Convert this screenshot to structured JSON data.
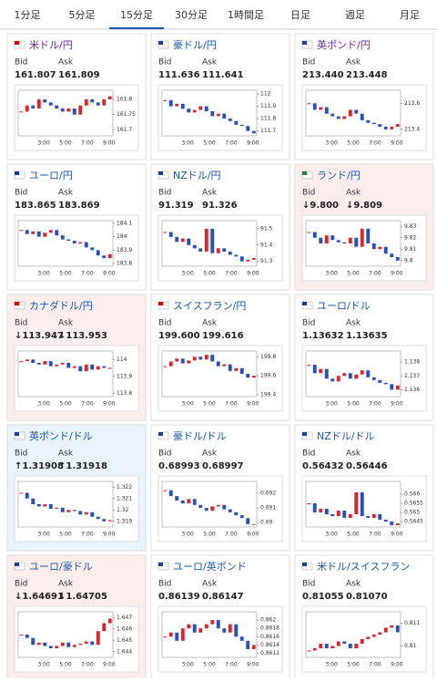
{
  "tabs": [
    "1分足",
    "5分足",
    "15分足",
    "30分足",
    "1時間足",
    "日足",
    "週足",
    "月足"
  ],
  "active_tab": 2,
  "bid_label": "Bid",
  "ask_label": "Ask",
  "time_ticks": [
    "3:00",
    "5:00",
    "7:00",
    "9:00"
  ],
  "panels": [
    {
      "title": "米ドル/円",
      "bid": "161.807",
      "ask": "161.809",
      "ylim": [
        161.68,
        161.83
      ],
      "yticks": [
        161.8,
        161.75,
        161.7
      ],
      "values": [
        161.76,
        161.78,
        161.77,
        161.8,
        161.79,
        161.78,
        161.77,
        161.76,
        161.77,
        161.75,
        161.78,
        161.8,
        161.79,
        161.78,
        161.8,
        161.81
      ]
    },
    {
      "title": "豪ドル/円",
      "bid": "111.636",
      "ask": "111.641",
      "ylim": [
        111.66,
        112.03
      ],
      "yticks": [
        112,
        111.9,
        111.8,
        111.7
      ],
      "values": [
        111.95,
        111.9,
        111.92,
        111.88,
        111.85,
        111.87,
        111.9,
        111.86,
        111.82,
        111.84,
        111.8,
        111.78,
        111.75,
        111.74,
        111.7,
        111.68
      ]
    },
    {
      "title": "英ポンド/円",
      "bid": "213.440",
      "ask": "213.448",
      "ylim": [
        213.35,
        213.7
      ],
      "yticks": [
        213.6,
        213.4
      ],
      "values": [
        213.6,
        213.55,
        213.57,
        213.52,
        213.5,
        213.48,
        213.5,
        213.55,
        213.52,
        213.47,
        213.45,
        213.44,
        213.42,
        213.4,
        213.42,
        213.44
      ]
    },
    {
      "title": "ユーロ/円",
      "bid": "183.865",
      "ask": "183.869",
      "ylim": [
        183.78,
        184.12
      ],
      "yticks": [
        184.1,
        184,
        183.9,
        183.8
      ],
      "values": [
        184.05,
        184.02,
        184.04,
        184.0,
        184.03,
        184.05,
        184.01,
        183.98,
        183.97,
        183.95,
        183.96,
        183.92,
        183.9,
        183.86,
        183.84,
        183.87
      ]
    },
    {
      "title": "NZドル/円",
      "bid": "91.319",
      "ask": "91.326",
      "ylim": [
        91.27,
        91.55
      ],
      "yticks": [
        91.5,
        91.4,
        91.3
      ],
      "values": [
        91.48,
        91.45,
        91.42,
        91.44,
        91.4,
        91.38,
        91.36,
        91.5,
        91.35,
        91.38,
        91.36,
        91.34,
        91.33,
        91.3,
        91.31,
        91.32
      ]
    },
    {
      "title": "ランド/円",
      "bid": "↓9.800",
      "ask": "↓9.809",
      "background": "#fdeeee",
      "ylim": [
        9.795,
        9.835
      ],
      "yticks": [
        9.83,
        9.82,
        9.81,
        9.8
      ],
      "values": [
        9.825,
        9.82,
        9.815,
        9.822,
        9.818,
        9.816,
        9.815,
        9.82,
        9.812,
        9.828,
        9.815,
        9.81,
        9.812,
        9.806,
        9.803,
        9.8
      ]
    },
    {
      "title": "カナダドル/円",
      "bid": "↓113.947",
      "ask": "↓113.953",
      "background": "#fdeeee",
      "ylim": [
        113.78,
        114.05
      ],
      "yticks": [
        114,
        113.9,
        113.8
      ],
      "values": [
        113.99,
        114.0,
        113.98,
        113.97,
        113.99,
        113.96,
        113.97,
        113.98,
        113.95,
        113.96,
        113.93,
        113.97,
        113.94,
        113.96,
        113.95,
        113.95
      ]
    },
    {
      "title": "スイスフラン/円",
      "bid": "199.600",
      "ask": "199.616",
      "ylim": [
        199.38,
        199.86
      ],
      "yticks": [
        199.8,
        199.6,
        199.4
      ],
      "values": [
        199.7,
        199.75,
        199.78,
        199.73,
        199.76,
        199.8,
        199.77,
        199.82,
        199.75,
        199.7,
        199.72,
        199.65,
        199.68,
        199.62,
        199.58,
        199.6
      ]
    },
    {
      "title": "ユーロ/ドル",
      "bid": "1.13632",
      "ask": "1.13635",
      "ylim": [
        1.1355,
        1.1388
      ],
      "yticks": [
        1.138,
        1.137,
        1.136
      ],
      "values": [
        1.1378,
        1.1372,
        1.1375,
        1.1368,
        1.1366,
        1.137,
        1.1372,
        1.1368,
        1.1371,
        1.1374,
        1.1369,
        1.1367,
        1.1365,
        1.1364,
        1.136,
        1.1363
      ]
    },
    {
      "title": "英ポンド/ドル",
      "bid": "↑1.31908",
      "ask": "↑1.31918",
      "background": "#eaf4fc",
      "ylim": [
        1.3185,
        1.3225
      ],
      "yticks": [
        1.322,
        1.321,
        1.32,
        1.319
      ],
      "values": [
        1.3215,
        1.321,
        1.3205,
        1.3203,
        1.3205,
        1.3201,
        1.3202,
        1.3198,
        1.32,
        1.3199,
        1.3196,
        1.3198,
        1.3194,
        1.3192,
        1.319,
        1.3191
      ]
    },
    {
      "title": "豪ドル/ドル",
      "bid": "0.68993",
      "ask": "0.68997",
      "ylim": [
        0.6897,
        0.6928
      ],
      "yticks": [
        0.692,
        0.691,
        0.69
      ],
      "values": [
        0.6922,
        0.6918,
        0.6915,
        0.6913,
        0.6916,
        0.6912,
        0.691,
        0.6908,
        0.6911,
        0.6912,
        0.6909,
        0.6907,
        0.6905,
        0.6903,
        0.6899,
        0.6899
      ]
    },
    {
      "title": "NZドル/ドル",
      "bid": "0.56432",
      "ask": "0.56446",
      "ylim": [
        0.5642,
        0.5667
      ],
      "yticks": [
        0.566,
        0.5655,
        0.565,
        0.5645
      ],
      "values": [
        0.5655,
        0.565,
        0.5652,
        0.5649,
        0.5648,
        0.5651,
        0.5647,
        0.5649,
        0.5661,
        0.5648,
        0.5647,
        0.5649,
        0.5646,
        0.5645,
        0.5643,
        0.5644
      ]
    },
    {
      "title": "ユーロ/豪ドル",
      "bid": "↓1.64691",
      "ask": "↓1.64705",
      "background": "#fdeeee",
      "ylim": [
        1.6435,
        1.6475
      ],
      "yticks": [
        1.647,
        1.646,
        1.645,
        1.644
      ],
      "values": [
        1.6455,
        1.6452,
        1.6446,
        1.6448,
        1.6445,
        1.6443,
        1.6445,
        1.6448,
        1.6444,
        1.6446,
        1.6447,
        1.6449,
        1.6446,
        1.6458,
        1.6465,
        1.6469
      ]
    },
    {
      "title": "ユーロ/英ポンド",
      "bid": "0.86139",
      "ask": "0.86147",
      "ylim": [
        0.8611,
        0.8622
      ],
      "yticks": [
        0.862,
        0.8618,
        0.8616,
        0.8614,
        0.8612
      ],
      "values": [
        0.8616,
        0.8617,
        0.8615,
        0.8618,
        0.8619,
        0.8617,
        0.8618,
        0.8619,
        0.862,
        0.8618,
        0.8617,
        0.8619,
        0.8616,
        0.8615,
        0.8613,
        0.8614
      ]
    },
    {
      "title": "米ドル/スイスフラン",
      "bid": "0.81055",
      "ask": "0.81070",
      "ylim": [
        0.8095,
        0.8115
      ],
      "yticks": [
        0.811,
        0.81
      ],
      "values": [
        0.8098,
        0.8099,
        0.8101,
        0.8099,
        0.81,
        0.8102,
        0.8101,
        0.8099,
        0.8101,
        0.8103,
        0.8104,
        0.8105,
        0.8106,
        0.8108,
        0.8109,
        0.8106
      ]
    }
  ]
}
